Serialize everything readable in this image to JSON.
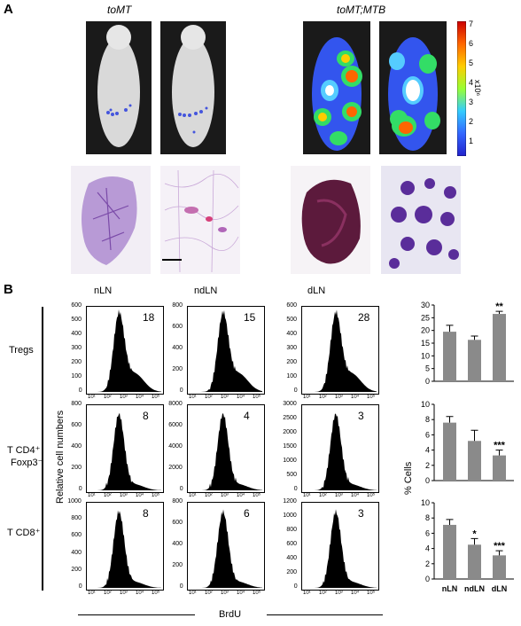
{
  "panel_a": {
    "letter": "A",
    "left_group_title": "toMT",
    "right_group_title": "toMT;MTB",
    "colorbar": {
      "ticks": [
        "7",
        "6",
        "5",
        "4",
        "3",
        "2",
        "1"
      ],
      "unit": "x10⁶",
      "colors": [
        "#cc0000",
        "#ff6600",
        "#ffcc00",
        "#99ff33",
        "#33ccff",
        "#3366ff",
        "#2222cc"
      ]
    },
    "scale_bar": "scale-bar"
  },
  "panel_b": {
    "letter": "B",
    "column_headers": [
      "nLN",
      "ndLN",
      "dLN"
    ],
    "row_labels": [
      {
        "line1": "Tregs",
        "line2": ""
      },
      {
        "line1": "T CD4⁺",
        "line2": "Foxp3⁻"
      },
      {
        "line1": "T CD8⁺",
        "line2": ""
      }
    ],
    "y_axis_label": "Relative cell numbers",
    "x_axis_label": "BrdU",
    "histograms": [
      [
        {
          "value": "18",
          "ticks": [
            "600",
            "500",
            "400",
            "300",
            "200",
            "100",
            "0"
          ],
          "max": 600
        },
        {
          "value": "15",
          "ticks": [
            "800",
            "600",
            "400",
            "200",
            "0"
          ],
          "max": 800
        },
        {
          "value": "28",
          "ticks": [
            "600",
            "500",
            "400",
            "300",
            "200",
            "100",
            "0"
          ],
          "max": 600
        }
      ],
      [
        {
          "value": "8",
          "ticks": [
            "800",
            "600",
            "400",
            "200",
            "0"
          ],
          "max": 800
        },
        {
          "value": "4",
          "ticks": [
            "8000",
            "6000",
            "4000",
            "2000",
            "0"
          ],
          "max": 8000
        },
        {
          "value": "3",
          "ticks": [
            "3000",
            "2500",
            "2000",
            "1500",
            "1000",
            "500",
            "0"
          ],
          "max": 3000
        }
      ],
      [
        {
          "value": "8",
          "ticks": [
            "1000",
            "800",
            "600",
            "400",
            "200",
            "0"
          ],
          "max": 1000
        },
        {
          "value": "6",
          "ticks": [
            "800",
            "600",
            "400",
            "200",
            "0"
          ],
          "max": 800
        },
        {
          "value": "3",
          "ticks": [
            "1200",
            "1000",
            "800",
            "600",
            "400",
            "200",
            "0"
          ],
          "max": 1200
        }
      ]
    ],
    "histogram_x_ticks": [
      "10¹",
      "10²",
      "10³",
      "10⁴",
      "10⁵"
    ],
    "bar_y_label": "% Cells"
  },
  "chart_data": [
    {
      "type": "bar",
      "categories": [
        "nLN",
        "ndLN",
        "dLN"
      ],
      "values": [
        19.5,
        16.3,
        26.5
      ],
      "errors": [
        2.5,
        1.5,
        1.0
      ],
      "significance": [
        "",
        "",
        "**"
      ],
      "ylim": [
        0,
        30
      ],
      "yticks": [
        "30",
        "25",
        "20",
        "15",
        "10",
        "5",
        "0"
      ],
      "xlabel": "",
      "ylabel": ""
    },
    {
      "type": "bar",
      "categories": [
        "nLN",
        "ndLN",
        "dLN"
      ],
      "values": [
        7.6,
        5.2,
        3.3
      ],
      "errors": [
        0.8,
        1.4,
        0.7
      ],
      "significance": [
        "",
        "",
        "***"
      ],
      "ylim": [
        0,
        10
      ],
      "yticks": [
        "10",
        "8",
        "6",
        "4",
        "2",
        "0"
      ],
      "xlabel": "",
      "ylabel": "% Cells"
    },
    {
      "type": "bar",
      "categories": [
        "nLN",
        "ndLN",
        "dLN"
      ],
      "values": [
        7.1,
        4.5,
        3.1
      ],
      "errors": [
        0.7,
        0.8,
        0.6
      ],
      "significance": [
        "",
        "*",
        "***"
      ],
      "ylim": [
        0,
        10
      ],
      "yticks": [
        "10",
        "8",
        "6",
        "4",
        "2",
        "0"
      ],
      "xlabel": "",
      "ylabel": ""
    }
  ]
}
